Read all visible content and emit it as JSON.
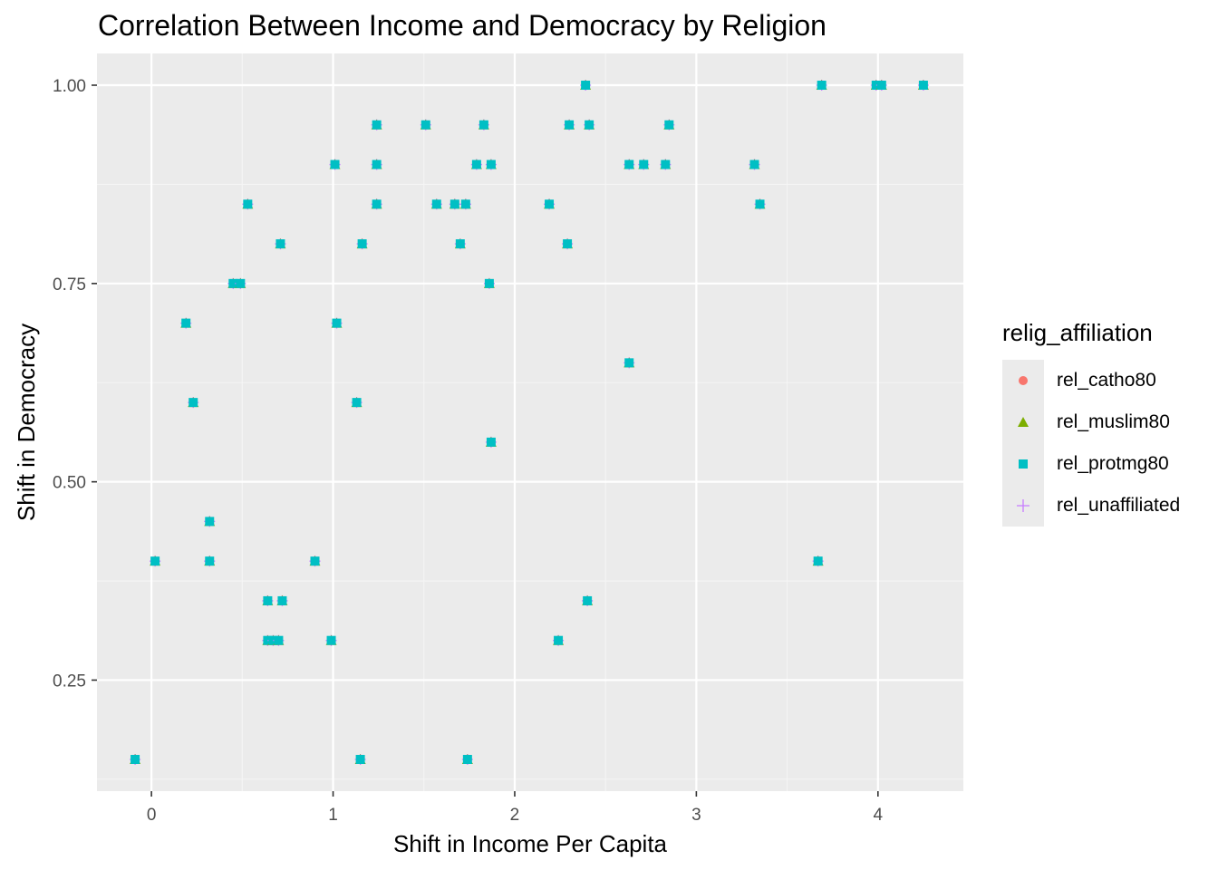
{
  "chart_data": {
    "type": "scatter",
    "title": "Correlation Between Income and Democracy by Religion",
    "xlabel": "Shift in Income Per Capita",
    "ylabel": "Shift in Democracy",
    "xlim": [
      -0.3,
      4.47
    ],
    "ylim": [
      0.11,
      1.04
    ],
    "x_ticks": [
      0,
      1,
      2,
      3,
      4
    ],
    "x_tick_labels": [
      "0",
      "1",
      "2",
      "3",
      "4"
    ],
    "y_ticks": [
      0.25,
      0.5,
      0.75,
      1.0
    ],
    "y_tick_labels": [
      "0.25",
      "0.50",
      "0.75",
      "1.00"
    ],
    "grid": true,
    "legend": {
      "title": "relig_affiliation",
      "position": "right",
      "entries": [
        {
          "name": "rel_catho80",
          "color": "#F8766D",
          "shape": "circle"
        },
        {
          "name": "rel_muslim80",
          "color": "#7CAE00",
          "shape": "triangle"
        },
        {
          "name": "rel_protmg80",
          "color": "#00BFC4",
          "shape": "square"
        },
        {
          "name": "rel_unaffiliated",
          "color": "#C77CFF",
          "shape": "plus"
        }
      ]
    },
    "points": [
      [
        -0.09,
        0.15
      ],
      [
        0.02,
        0.4
      ],
      [
        0.19,
        0.7
      ],
      [
        0.23,
        0.6
      ],
      [
        0.32,
        0.45
      ],
      [
        0.32,
        0.4
      ],
      [
        0.45,
        0.75
      ],
      [
        0.49,
        0.75
      ],
      [
        0.53,
        0.85
      ],
      [
        0.64,
        0.35
      ],
      [
        0.64,
        0.3
      ],
      [
        0.67,
        0.3
      ],
      [
        0.7,
        0.3
      ],
      [
        0.71,
        0.8
      ],
      [
        0.72,
        0.35
      ],
      [
        0.9,
        0.4
      ],
      [
        0.99,
        0.3
      ],
      [
        1.01,
        0.9
      ],
      [
        1.02,
        0.7
      ],
      [
        1.13,
        0.6
      ],
      [
        1.15,
        0.15
      ],
      [
        1.16,
        0.8
      ],
      [
        1.24,
        0.95
      ],
      [
        1.24,
        0.9
      ],
      [
        1.24,
        0.85
      ],
      [
        1.51,
        0.95
      ],
      [
        1.57,
        0.85
      ],
      [
        1.67,
        0.85
      ],
      [
        1.7,
        0.8
      ],
      [
        1.73,
        0.85
      ],
      [
        1.74,
        0.15
      ],
      [
        1.79,
        0.9
      ],
      [
        1.83,
        0.95
      ],
      [
        1.86,
        0.75
      ],
      [
        1.87,
        0.9
      ],
      [
        1.87,
        0.55
      ],
      [
        2.19,
        0.85
      ],
      [
        2.24,
        0.3
      ],
      [
        2.29,
        0.8
      ],
      [
        2.3,
        0.95
      ],
      [
        2.39,
        1.0
      ],
      [
        2.4,
        0.35
      ],
      [
        2.41,
        0.95
      ],
      [
        2.63,
        0.65
      ],
      [
        2.63,
        0.9
      ],
      [
        2.71,
        0.9
      ],
      [
        2.83,
        0.9
      ],
      [
        2.85,
        0.95
      ],
      [
        3.32,
        0.9
      ],
      [
        3.35,
        0.85
      ],
      [
        3.67,
        0.4
      ],
      [
        3.69,
        1.0
      ],
      [
        3.99,
        1.0
      ],
      [
        4.02,
        1.0
      ],
      [
        4.25,
        1.0
      ]
    ],
    "series": [
      {
        "name": "rel_catho80"
      },
      {
        "name": "rel_muslim80"
      },
      {
        "name": "rel_protmg80"
      },
      {
        "name": "rel_unaffiliated"
      }
    ]
  }
}
